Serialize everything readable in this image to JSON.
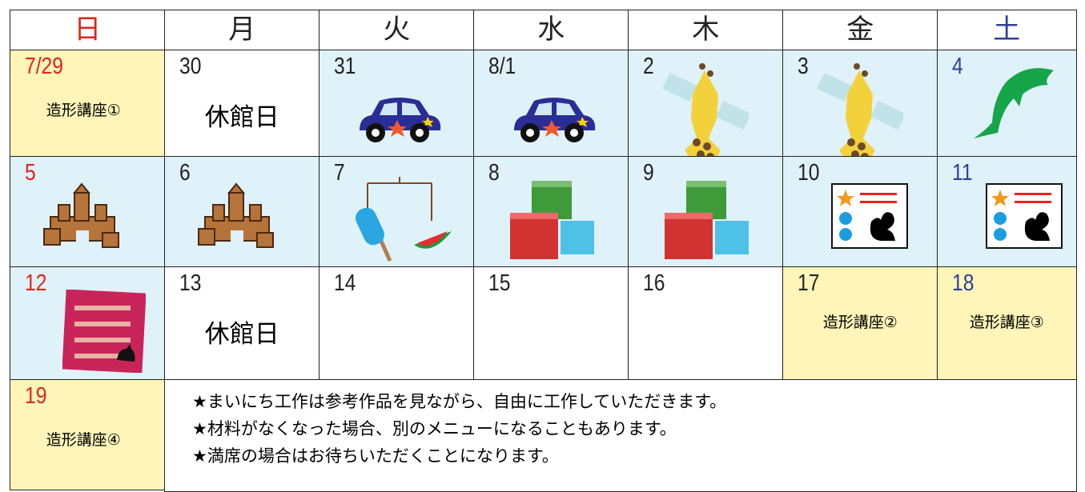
{
  "header": {
    "days": [
      "日",
      "月",
      "火",
      "水",
      "木",
      "金",
      "土"
    ]
  },
  "weeks": [
    [
      {
        "date": "7/29",
        "note": "造形講座①"
      },
      {
        "date": "30",
        "note": "休館日"
      },
      {
        "date": "31"
      },
      {
        "date": "8/1"
      },
      {
        "date": "2"
      },
      {
        "date": "3"
      },
      {
        "date": "4"
      }
    ],
    [
      {
        "date": "5"
      },
      {
        "date": "6"
      },
      {
        "date": "7"
      },
      {
        "date": "8"
      },
      {
        "date": "9"
      },
      {
        "date": "10"
      },
      {
        "date": "11"
      }
    ],
    [
      {
        "date": "12"
      },
      {
        "date": "13",
        "note": "休館日"
      },
      {
        "date": "14"
      },
      {
        "date": "15"
      },
      {
        "date": "16"
      },
      {
        "date": "17",
        "note": "造形講座②"
      },
      {
        "date": "18",
        "note": "造形講座③"
      }
    ],
    [
      {
        "date": "19",
        "note": "造形講座④"
      }
    ]
  ],
  "notes": [
    "★まいにち工作は参考作品を見ながら、自由に工作していただきます。",
    "★材料がなくなった場合、別のメニューになることもあります。",
    "★満席の場合はお待ちいただくことになります。"
  ]
}
